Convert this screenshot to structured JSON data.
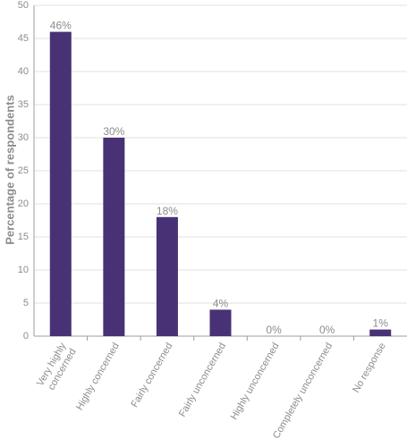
{
  "chart_data": {
    "type": "bar",
    "categories": [
      "Very highly concerned",
      "Highly concerned",
      "Fairly concerned",
      "Fairly unconcerned",
      "Highly unconcerned",
      "Completely unconcerned",
      "No response"
    ],
    "category_lines": [
      [
        "Very highly",
        "concerned"
      ],
      [
        "Highly concerned"
      ],
      [
        "Fairly concerned"
      ],
      [
        "Fairly unconcerned"
      ],
      [
        "Highly unconcerned"
      ],
      [
        "Completely unconcerned"
      ],
      [
        "No response"
      ]
    ],
    "values": [
      46,
      30,
      18,
      4,
      0,
      0,
      1
    ],
    "data_labels": [
      "46%",
      "30%",
      "18%",
      "4%",
      "0%",
      "0%",
      "1%"
    ],
    "ylabel": "Percentage of respondents",
    "xlabel": "",
    "ylim": [
      0,
      50
    ],
    "yticks": [
      0,
      5,
      10,
      15,
      20,
      25,
      30,
      35,
      40,
      45,
      50
    ],
    "grid": true,
    "colors": {
      "bar": "#483275",
      "grid": "#e1e1e1",
      "text": "#8c8c8c"
    }
  }
}
